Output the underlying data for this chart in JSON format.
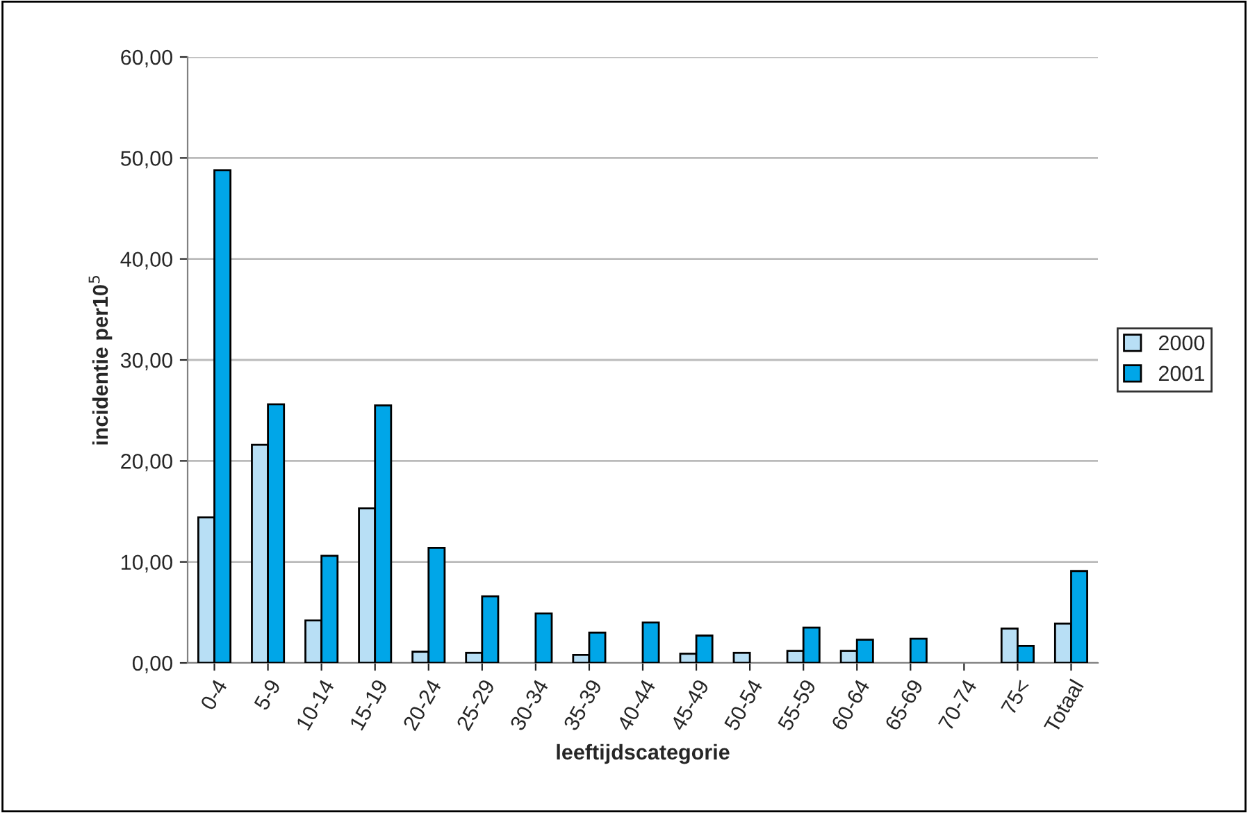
{
  "chart_data": {
    "type": "bar",
    "xlabel": "leeftijdscategorie",
    "ylabel": "incidentie per10$^{5}$",
    "categories": [
      "0-4",
      "5-9",
      "10-14",
      "15-19",
      "20-24",
      "25-29",
      "30-34",
      "35-39",
      "40-44",
      "45-49",
      "50-54",
      "55-59",
      "60-64",
      "65-69",
      "70-74",
      "75<",
      "Totaal"
    ],
    "series": [
      {
        "name": "2000",
        "color": "#b8dff5",
        "values": [
          14.4,
          21.6,
          4.2,
          15.3,
          1.1,
          1.0,
          null,
          0.8,
          null,
          0.9,
          1.0,
          1.2,
          1.2,
          null,
          null,
          3.4,
          3.9
        ]
      },
      {
        "name": "2001",
        "color": "#00a6e8",
        "values": [
          48.8,
          25.6,
          10.6,
          25.5,
          11.4,
          6.6,
          4.9,
          3.0,
          4.0,
          2.7,
          null,
          3.5,
          2.3,
          2.4,
          null,
          1.7,
          9.1
        ]
      }
    ],
    "ylim": [
      0,
      60
    ],
    "yticks": [
      {
        "value": 0,
        "label": "0,00"
      },
      {
        "value": 10,
        "label": "10,00"
      },
      {
        "value": 20,
        "label": "20,00"
      },
      {
        "value": 30,
        "label": "30,00"
      },
      {
        "value": 40,
        "label": "40,00"
      },
      {
        "value": 50,
        "label": "50,00"
      },
      {
        "value": 60,
        "label": "60,00"
      }
    ],
    "grid": "y",
    "legend": "right"
  }
}
